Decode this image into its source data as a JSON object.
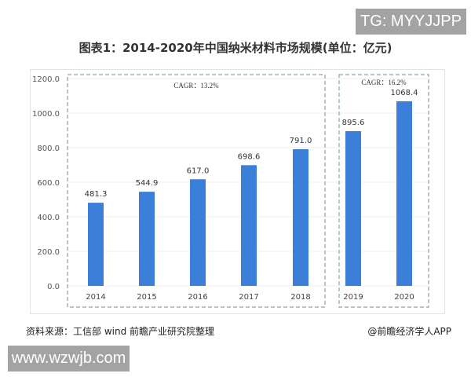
{
  "watermark_top": "TG: MYYJJPP",
  "watermark_bottom": "www.wzwjb.com",
  "source": "资料来源：工信部 wind 前瞻产业研究院整理",
  "credit": "@前瞻经济学人APP",
  "chart_data": {
    "type": "bar",
    "title": "图表1：2014-2020年中国纳米材料市场规模(单位：亿元)",
    "categories": [
      "2014",
      "2015",
      "2016",
      "2017",
      "2018",
      "2019",
      "2020"
    ],
    "values": [
      481.3,
      544.9,
      617.0,
      698.6,
      791.0,
      895.6,
      1068.4
    ],
    "value_labels": [
      "481.3",
      "544.9",
      "617.0",
      "698.6",
      "791.0",
      "895.6",
      "1068.4"
    ],
    "yticks": [
      "0.0",
      "200.0",
      "400.0",
      "600.0",
      "800.0",
      "1000.0",
      "1200.0"
    ],
    "ylim": [
      0,
      1200
    ],
    "bar_color": "#3b7fd9",
    "annotations": [
      "CAGR：13.2%",
      "CAGR：16.2%"
    ],
    "xlabel": "",
    "ylabel": ""
  }
}
